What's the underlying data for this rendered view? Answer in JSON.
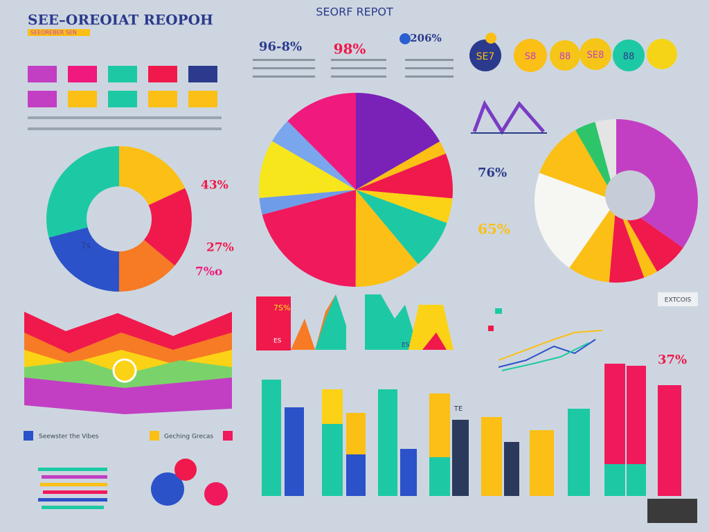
{
  "header": {
    "title": "SEE–OREOIAT REOPOH",
    "subtitle": "SEEOREBER SEN",
    "center_title": "SEORF REPOT"
  },
  "top_stats": [
    "96-8%",
    "98%",
    "206%"
  ],
  "circles": [
    "SE7",
    "S8",
    "88",
    "SE8",
    "88"
  ],
  "left_labels": [
    "43%",
    "27%",
    "7%o",
    "7s"
  ],
  "right_labels": [
    "76%",
    "65%",
    "37%",
    "EXTCOIS"
  ],
  "small_charts": [
    "7S%",
    "ES",
    "ES",
    "TE"
  ],
  "legend": [
    "Seewster the Vibes",
    "Geching Grecas"
  ]
}
